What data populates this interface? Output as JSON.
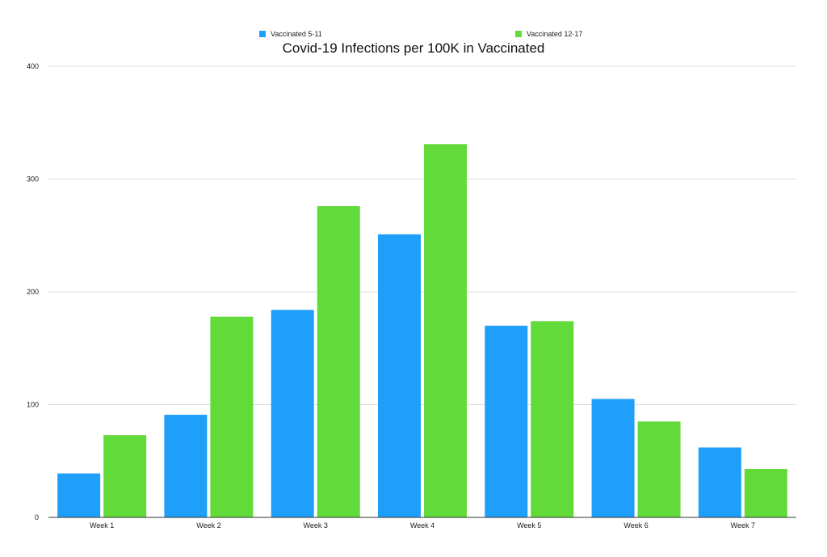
{
  "chart_data": {
    "type": "bar",
    "title": "Covid-19 Infections per 100K in Vaccinated",
    "xlabel": "",
    "ylabel": "",
    "categories": [
      "Week 1",
      "Week 2",
      "Week 3",
      "Week 4",
      "Week 5",
      "Week 6",
      "Week 7"
    ],
    "series": [
      {
        "name": "Vaccinated 5-11",
        "color": "#1e9ffa",
        "values": [
          39,
          91,
          184,
          251,
          170,
          105,
          62
        ]
      },
      {
        "name": "Vaccinated 12-17",
        "color": "#62db3a",
        "values": [
          73,
          178,
          276,
          331,
          174,
          85,
          43
        ]
      }
    ],
    "ylim": [
      0,
      400
    ],
    "yticks": [
      0,
      100,
      200,
      300,
      400
    ],
    "grid": true,
    "legend_position": "top"
  }
}
